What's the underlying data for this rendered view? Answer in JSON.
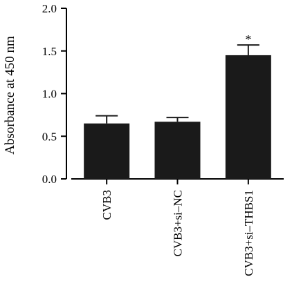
{
  "chart_data": {
    "type": "bar",
    "title": "",
    "xlabel": "",
    "ylabel": "Absorbance at 450 nm",
    "ylim": [
      0,
      2.0
    ],
    "yticks": [
      "0.0",
      "0.5",
      "1.0",
      "1.5",
      "2.0"
    ],
    "categories": [
      "CVB3",
      "CVB3+si–NC",
      "CVB3+si–THBS1"
    ],
    "values": [
      0.65,
      0.67,
      1.45
    ],
    "errors": [
      0.09,
      0.05,
      0.12
    ],
    "annotations": [
      "",
      "",
      "*"
    ],
    "grid": false,
    "legend": "none",
    "colors": {
      "bar": "#1a1a1a",
      "axis": "#000000"
    }
  }
}
